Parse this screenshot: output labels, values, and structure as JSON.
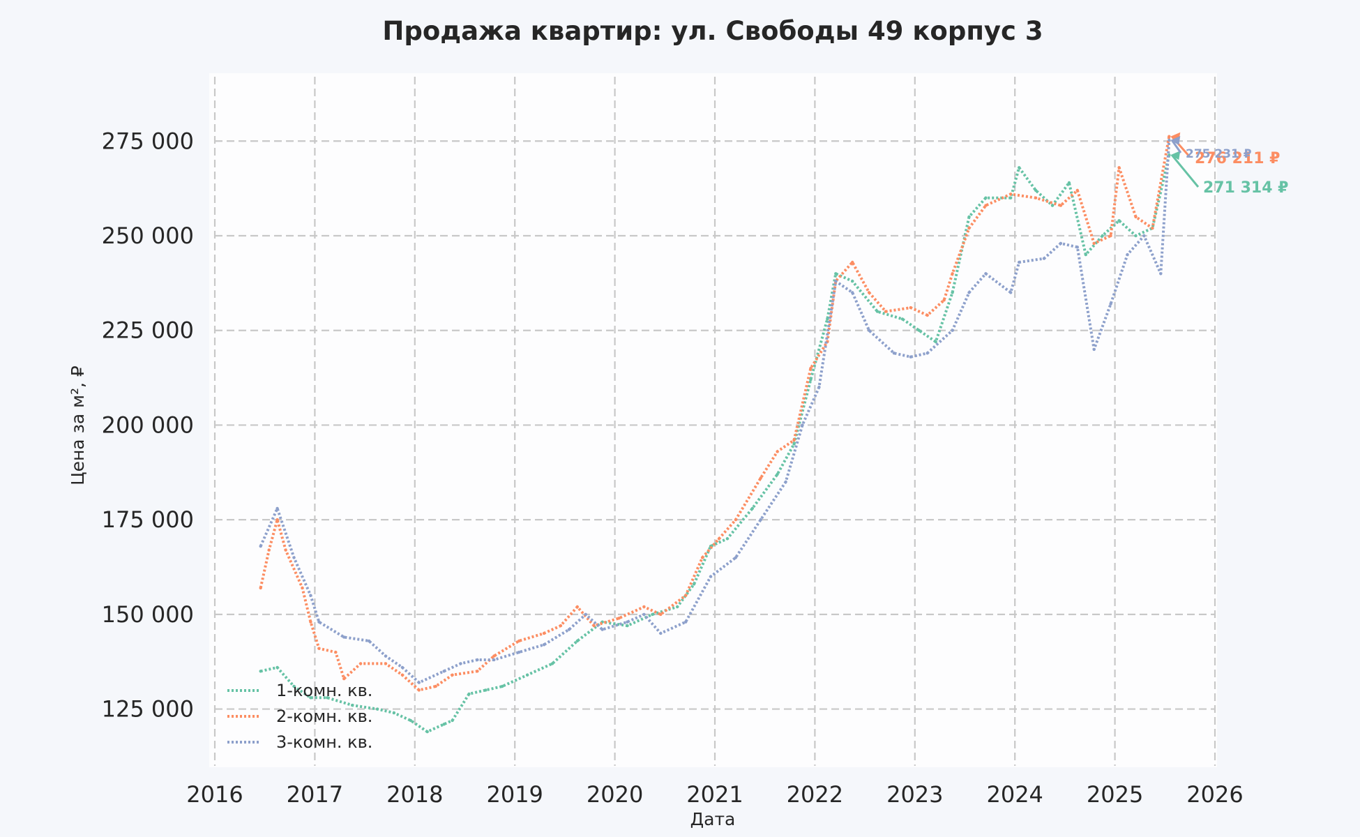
{
  "chart_data": {
    "type": "line",
    "title": "Продажа квартир: ул. Свободы 49 корпус 3",
    "xlabel": "Дата",
    "ylabel": "Цена за м², ₽",
    "xlim": [
      2016,
      2026
    ],
    "ylim": [
      110000,
      292000
    ],
    "grid": true,
    "legend_position": "bottom-left",
    "x_ticks": [
      "2016",
      "2017",
      "2018",
      "2019",
      "2020",
      "2021",
      "2022",
      "2023",
      "2024",
      "2025",
      "2026"
    ],
    "y_ticks": [
      "125 000",
      "150 000",
      "175 000",
      "200 000",
      "225 000",
      "250 000",
      "275 000"
    ],
    "series": [
      {
        "name": "1-комн. кв.",
        "color": "#66c2a5",
        "end_label": "271 314 ₽",
        "points": [
          [
            "2016-06",
            135000
          ],
          [
            "2016-08",
            136000
          ],
          [
            "2016-10",
            131000
          ],
          [
            "2016-12",
            128000
          ],
          [
            "2017-02",
            128000
          ],
          [
            "2017-05",
            126000
          ],
          [
            "2017-08",
            125000
          ],
          [
            "2017-10",
            124000
          ],
          [
            "2017-12",
            122000
          ],
          [
            "2018-02",
            119000
          ],
          [
            "2018-04",
            121000
          ],
          [
            "2018-05",
            122000
          ],
          [
            "2018-07",
            129000
          ],
          [
            "2018-09",
            130000
          ],
          [
            "2018-11",
            131000
          ],
          [
            "2019-02",
            134000
          ],
          [
            "2019-05",
            137000
          ],
          [
            "2019-08",
            143000
          ],
          [
            "2019-11",
            148000
          ],
          [
            "2020-02",
            147000
          ],
          [
            "2020-05",
            150000
          ],
          [
            "2020-08",
            152000
          ],
          [
            "2020-10",
            158000
          ],
          [
            "2020-12",
            168000
          ],
          [
            "2021-02",
            170000
          ],
          [
            "2021-05",
            178000
          ],
          [
            "2021-08",
            187000
          ],
          [
            "2021-10",
            195000
          ],
          [
            "2021-12",
            212000
          ],
          [
            "2022-02",
            228000
          ],
          [
            "2022-03",
            240000
          ],
          [
            "2022-05",
            238000
          ],
          [
            "2022-08",
            230000
          ],
          [
            "2022-11",
            228000
          ],
          [
            "2023-01",
            225000
          ],
          [
            "2023-03",
            222000
          ],
          [
            "2023-05",
            235000
          ],
          [
            "2023-07",
            255000
          ],
          [
            "2023-09",
            260000
          ],
          [
            "2023-12",
            260000
          ],
          [
            "2024-01",
            268000
          ],
          [
            "2024-03",
            262000
          ],
          [
            "2024-05",
            258000
          ],
          [
            "2024-07",
            264000
          ],
          [
            "2024-09",
            245000
          ],
          [
            "2024-11",
            250000
          ],
          [
            "2025-01",
            254000
          ],
          [
            "2025-03",
            250000
          ],
          [
            "2025-05",
            252000
          ],
          [
            "2025-07",
            271314
          ]
        ]
      },
      {
        "name": "2-комн. кв.",
        "color": "#fc8d62",
        "end_label": "276 211 ₽",
        "points": [
          [
            "2016-06",
            157000
          ],
          [
            "2016-07",
            167000
          ],
          [
            "2016-08",
            175000
          ],
          [
            "2016-09",
            167000
          ],
          [
            "2016-11",
            157000
          ],
          [
            "2016-12",
            148000
          ],
          [
            "2017-01",
            141000
          ],
          [
            "2017-03",
            140000
          ],
          [
            "2017-04",
            133000
          ],
          [
            "2017-06",
            137000
          ],
          [
            "2017-09",
            137000
          ],
          [
            "2017-11",
            134000
          ],
          [
            "2018-01",
            130000
          ],
          [
            "2018-03",
            131000
          ],
          [
            "2018-05",
            134000
          ],
          [
            "2018-08",
            135000
          ],
          [
            "2018-10",
            139000
          ],
          [
            "2019-01",
            143000
          ],
          [
            "2019-04",
            145000
          ],
          [
            "2019-06",
            147000
          ],
          [
            "2019-08",
            152000
          ],
          [
            "2019-10",
            147000
          ],
          [
            "2020-01",
            149000
          ],
          [
            "2020-04",
            152000
          ],
          [
            "2020-06",
            150000
          ],
          [
            "2020-09",
            155000
          ],
          [
            "2020-11",
            165000
          ],
          [
            "2021-01",
            170000
          ],
          [
            "2021-03",
            175000
          ],
          [
            "2021-06",
            186000
          ],
          [
            "2021-08",
            193000
          ],
          [
            "2021-10",
            196000
          ],
          [
            "2021-12",
            215000
          ],
          [
            "2022-02",
            222000
          ],
          [
            "2022-03",
            238000
          ],
          [
            "2022-05",
            243000
          ],
          [
            "2022-07",
            235000
          ],
          [
            "2022-09",
            230000
          ],
          [
            "2022-12",
            231000
          ],
          [
            "2023-02",
            229000
          ],
          [
            "2023-04",
            233000
          ],
          [
            "2023-05",
            240000
          ],
          [
            "2023-07",
            252000
          ],
          [
            "2023-09",
            258000
          ],
          [
            "2023-12",
            261000
          ],
          [
            "2024-03",
            260000
          ],
          [
            "2024-06",
            258000
          ],
          [
            "2024-08",
            262000
          ],
          [
            "2024-10",
            248000
          ],
          [
            "2024-12",
            250000
          ],
          [
            "2025-01",
            268000
          ],
          [
            "2025-03",
            255000
          ],
          [
            "2025-05",
            252000
          ],
          [
            "2025-07",
            276211
          ]
        ]
      },
      {
        "name": "3-комн. кв.",
        "color": "#8da0cb",
        "end_label": "275 231 ₽",
        "points": [
          [
            "2016-06",
            168000
          ],
          [
            "2016-08",
            178000
          ],
          [
            "2016-10",
            165000
          ],
          [
            "2016-12",
            155000
          ],
          [
            "2017-01",
            148000
          ],
          [
            "2017-04",
            144000
          ],
          [
            "2017-07",
            143000
          ],
          [
            "2017-09",
            139000
          ],
          [
            "2017-11",
            136000
          ],
          [
            "2018-01",
            132000
          ],
          [
            "2018-04",
            135000
          ],
          [
            "2018-06",
            137000
          ],
          [
            "2018-08",
            138000
          ],
          [
            "2018-10",
            138000
          ],
          [
            "2019-01",
            140000
          ],
          [
            "2019-04",
            142000
          ],
          [
            "2019-07",
            146000
          ],
          [
            "2019-09",
            150000
          ],
          [
            "2019-11",
            146000
          ],
          [
            "2020-02",
            148000
          ],
          [
            "2020-04",
            150000
          ],
          [
            "2020-06",
            145000
          ],
          [
            "2020-09",
            148000
          ],
          [
            "2020-12",
            160000
          ],
          [
            "2021-03",
            165000
          ],
          [
            "2021-06",
            175000
          ],
          [
            "2021-09",
            185000
          ],
          [
            "2021-11",
            200000
          ],
          [
            "2022-01",
            210000
          ],
          [
            "2022-03",
            238000
          ],
          [
            "2022-05",
            235000
          ],
          [
            "2022-07",
            225000
          ],
          [
            "2022-10",
            219000
          ],
          [
            "2022-12",
            218000
          ],
          [
            "2023-02",
            219000
          ],
          [
            "2023-05",
            225000
          ],
          [
            "2023-07",
            235000
          ],
          [
            "2023-09",
            240000
          ],
          [
            "2023-12",
            235000
          ],
          [
            "2024-01",
            243000
          ],
          [
            "2024-04",
            244000
          ],
          [
            "2024-06",
            248000
          ],
          [
            "2024-08",
            247000
          ],
          [
            "2024-10",
            220000
          ],
          [
            "2024-12",
            232000
          ],
          [
            "2025-02",
            245000
          ],
          [
            "2025-04",
            250000
          ],
          [
            "2025-06",
            240000
          ],
          [
            "2025-07",
            275231
          ]
        ]
      }
    ]
  }
}
